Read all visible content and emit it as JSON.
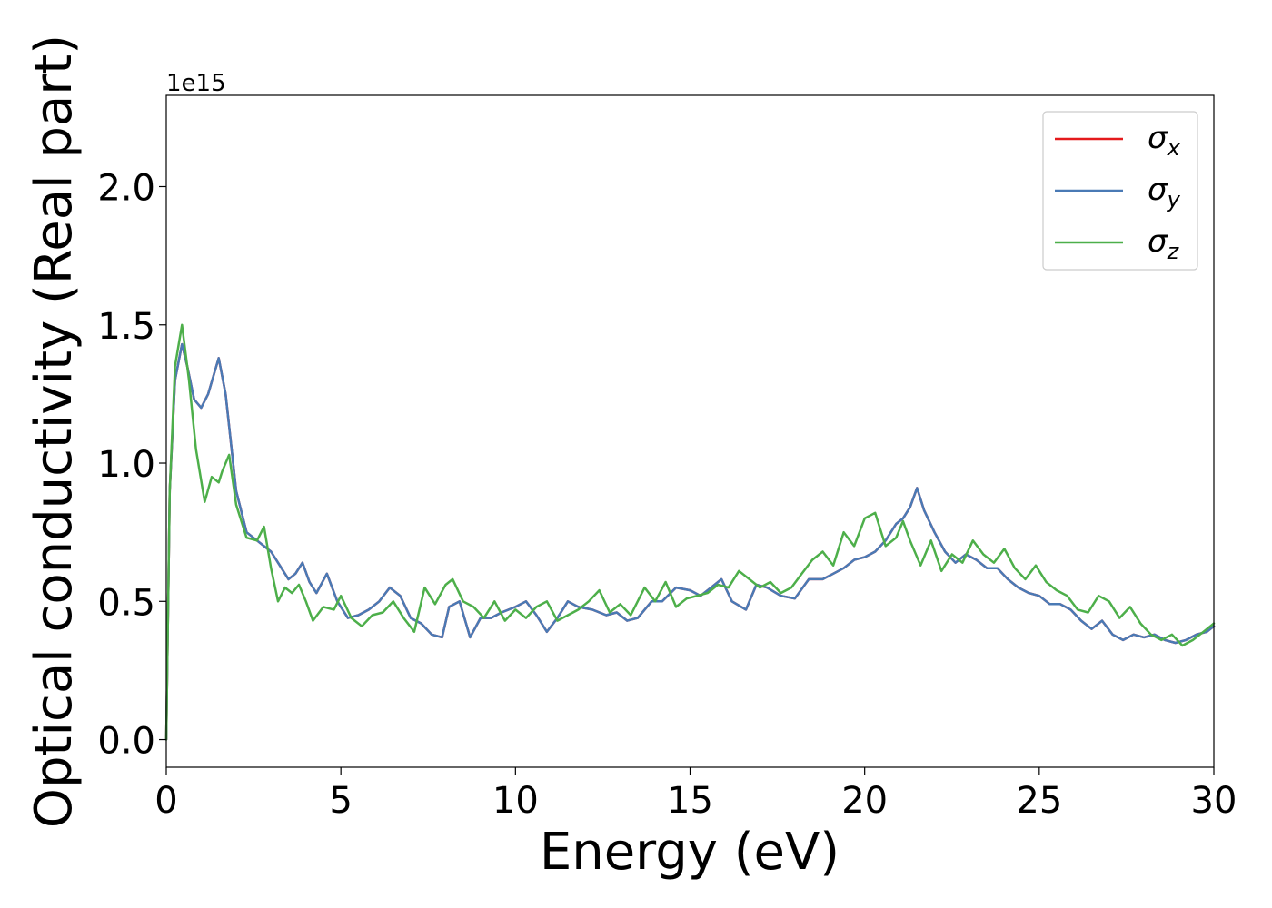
{
  "chart_data": {
    "type": "line",
    "xlabel": "Energy (eV)",
    "ylabel": "Optical conductivity (Real part)",
    "offset_label": "1e15",
    "scale": 1000000000000000.0,
    "xlim": [
      0,
      30
    ],
    "ylim": [
      -0.1,
      2.33
    ],
    "xticks": [
      0,
      5,
      10,
      15,
      20,
      25,
      30
    ],
    "xtick_labels": [
      "0",
      "5",
      "10",
      "15",
      "20",
      "25",
      "30"
    ],
    "yticks": [
      0.0,
      0.5,
      1.0,
      1.5,
      2.0
    ],
    "ytick_labels": [
      "0.0",
      "0.5",
      "1.0",
      "1.5",
      "2.0"
    ],
    "grid": false,
    "legend_position": "top-right",
    "series": [
      {
        "name": "σx",
        "symbol": "σ",
        "subscript": "x",
        "color": "#e41a1c",
        "x": [
          0,
          0.1,
          0.25,
          0.45,
          0.6,
          0.8,
          1.0,
          1.2,
          1.5,
          1.7,
          2.0,
          2.3,
          2.6,
          3.0,
          3.3,
          3.5,
          3.7,
          3.9,
          4.1,
          4.3,
          4.6,
          4.9,
          5.2,
          5.5,
          5.8,
          6.1,
          6.4,
          6.7,
          7.0,
          7.3,
          7.6,
          7.9,
          8.1,
          8.4,
          8.7,
          9.0,
          9.3,
          9.6,
          10.0,
          10.3,
          10.6,
          10.9,
          11.2,
          11.5,
          11.8,
          12.2,
          12.6,
          12.9,
          13.2,
          13.5,
          13.9,
          14.2,
          14.6,
          15.0,
          15.3,
          15.6,
          15.9,
          16.2,
          16.6,
          16.9,
          17.2,
          17.6,
          18.0,
          18.4,
          18.8,
          19.1,
          19.4,
          19.7,
          20.0,
          20.3,
          20.6,
          20.9,
          21.1,
          21.3,
          21.5,
          21.7,
          22.0,
          22.3,
          22.6,
          22.9,
          23.2,
          23.5,
          23.8,
          24.1,
          24.4,
          24.7,
          25.0,
          25.3,
          25.6,
          25.9,
          26.2,
          26.5,
          26.8,
          27.1,
          27.4,
          27.7,
          28.0,
          28.3,
          28.6,
          28.9,
          29.2,
          29.5,
          29.8,
          30.0
        ],
        "values": [
          0.0,
          0.9,
          1.3,
          1.43,
          1.35,
          1.23,
          1.2,
          1.25,
          1.38,
          1.25,
          0.9,
          0.75,
          0.72,
          0.68,
          0.62,
          0.58,
          0.6,
          0.64,
          0.57,
          0.53,
          0.6,
          0.5,
          0.44,
          0.45,
          0.47,
          0.5,
          0.55,
          0.52,
          0.44,
          0.42,
          0.38,
          0.37,
          0.48,
          0.5,
          0.37,
          0.44,
          0.44,
          0.46,
          0.48,
          0.5,
          0.45,
          0.39,
          0.44,
          0.5,
          0.48,
          0.47,
          0.45,
          0.46,
          0.43,
          0.44,
          0.5,
          0.5,
          0.55,
          0.54,
          0.52,
          0.55,
          0.58,
          0.5,
          0.47,
          0.56,
          0.55,
          0.52,
          0.51,
          0.58,
          0.58,
          0.6,
          0.62,
          0.65,
          0.66,
          0.68,
          0.72,
          0.78,
          0.8,
          0.84,
          0.91,
          0.83,
          0.75,
          0.68,
          0.64,
          0.67,
          0.65,
          0.62,
          0.62,
          0.58,
          0.55,
          0.53,
          0.52,
          0.49,
          0.49,
          0.47,
          0.43,
          0.4,
          0.43,
          0.38,
          0.36,
          0.38,
          0.37,
          0.38,
          0.36,
          0.35,
          0.36,
          0.38,
          0.39,
          0.41
        ]
      },
      {
        "name": "σy",
        "symbol": "σ",
        "subscript": "y",
        "color": "#4a7ab5",
        "x": [
          0,
          0.1,
          0.25,
          0.45,
          0.6,
          0.8,
          1.0,
          1.2,
          1.5,
          1.7,
          2.0,
          2.3,
          2.6,
          3.0,
          3.3,
          3.5,
          3.7,
          3.9,
          4.1,
          4.3,
          4.6,
          4.9,
          5.2,
          5.5,
          5.8,
          6.1,
          6.4,
          6.7,
          7.0,
          7.3,
          7.6,
          7.9,
          8.1,
          8.4,
          8.7,
          9.0,
          9.3,
          9.6,
          10.0,
          10.3,
          10.6,
          10.9,
          11.2,
          11.5,
          11.8,
          12.2,
          12.6,
          12.9,
          13.2,
          13.5,
          13.9,
          14.2,
          14.6,
          15.0,
          15.3,
          15.6,
          15.9,
          16.2,
          16.6,
          16.9,
          17.2,
          17.6,
          18.0,
          18.4,
          18.8,
          19.1,
          19.4,
          19.7,
          20.0,
          20.3,
          20.6,
          20.9,
          21.1,
          21.3,
          21.5,
          21.7,
          22.0,
          22.3,
          22.6,
          22.9,
          23.2,
          23.5,
          23.8,
          24.1,
          24.4,
          24.7,
          25.0,
          25.3,
          25.6,
          25.9,
          26.2,
          26.5,
          26.8,
          27.1,
          27.4,
          27.7,
          28.0,
          28.3,
          28.6,
          28.9,
          29.2,
          29.5,
          29.8,
          30.0
        ],
        "values": [
          0.0,
          0.9,
          1.3,
          1.43,
          1.35,
          1.23,
          1.2,
          1.25,
          1.38,
          1.25,
          0.9,
          0.75,
          0.72,
          0.68,
          0.62,
          0.58,
          0.6,
          0.64,
          0.57,
          0.53,
          0.6,
          0.5,
          0.44,
          0.45,
          0.47,
          0.5,
          0.55,
          0.52,
          0.44,
          0.42,
          0.38,
          0.37,
          0.48,
          0.5,
          0.37,
          0.44,
          0.44,
          0.46,
          0.48,
          0.5,
          0.45,
          0.39,
          0.44,
          0.5,
          0.48,
          0.47,
          0.45,
          0.46,
          0.43,
          0.44,
          0.5,
          0.5,
          0.55,
          0.54,
          0.52,
          0.55,
          0.58,
          0.5,
          0.47,
          0.56,
          0.55,
          0.52,
          0.51,
          0.58,
          0.58,
          0.6,
          0.62,
          0.65,
          0.66,
          0.68,
          0.72,
          0.78,
          0.8,
          0.84,
          0.91,
          0.83,
          0.75,
          0.68,
          0.64,
          0.67,
          0.65,
          0.62,
          0.62,
          0.58,
          0.55,
          0.53,
          0.52,
          0.49,
          0.49,
          0.47,
          0.43,
          0.4,
          0.43,
          0.38,
          0.36,
          0.38,
          0.37,
          0.38,
          0.36,
          0.35,
          0.36,
          0.38,
          0.39,
          0.41
        ]
      },
      {
        "name": "σz",
        "symbol": "σ",
        "subscript": "z",
        "color": "#4daf4a",
        "x": [
          0,
          0.1,
          0.25,
          0.45,
          0.65,
          0.85,
          1.1,
          1.3,
          1.5,
          1.6,
          1.8,
          2.0,
          2.3,
          2.6,
          2.8,
          3.0,
          3.2,
          3.4,
          3.6,
          3.8,
          4.0,
          4.2,
          4.5,
          4.8,
          5.0,
          5.3,
          5.6,
          5.9,
          6.2,
          6.5,
          6.8,
          7.1,
          7.4,
          7.7,
          8.0,
          8.2,
          8.5,
          8.8,
          9.1,
          9.4,
          9.7,
          10.0,
          10.3,
          10.6,
          10.9,
          11.2,
          11.5,
          11.8,
          12.1,
          12.4,
          12.7,
          13.0,
          13.3,
          13.7,
          14.0,
          14.3,
          14.6,
          14.9,
          15.2,
          15.5,
          15.8,
          16.1,
          16.4,
          16.7,
          17.0,
          17.3,
          17.6,
          17.9,
          18.2,
          18.5,
          18.8,
          19.1,
          19.4,
          19.7,
          20.0,
          20.3,
          20.6,
          20.9,
          21.1,
          21.3,
          21.6,
          21.9,
          22.2,
          22.5,
          22.8,
          23.1,
          23.4,
          23.7,
          24.0,
          24.3,
          24.6,
          24.9,
          25.2,
          25.5,
          25.8,
          26.1,
          26.4,
          26.7,
          27.0,
          27.3,
          27.6,
          27.9,
          28.2,
          28.5,
          28.8,
          29.1,
          29.4,
          29.7,
          30.0
        ],
        "values": [
          0.0,
          0.9,
          1.35,
          1.5,
          1.3,
          1.05,
          0.86,
          0.95,
          0.93,
          0.97,
          1.03,
          0.85,
          0.73,
          0.72,
          0.77,
          0.62,
          0.5,
          0.55,
          0.53,
          0.56,
          0.5,
          0.43,
          0.48,
          0.47,
          0.52,
          0.44,
          0.41,
          0.45,
          0.46,
          0.5,
          0.44,
          0.39,
          0.55,
          0.49,
          0.56,
          0.58,
          0.5,
          0.48,
          0.44,
          0.5,
          0.43,
          0.47,
          0.44,
          0.48,
          0.5,
          0.43,
          0.45,
          0.47,
          0.5,
          0.54,
          0.46,
          0.49,
          0.45,
          0.55,
          0.5,
          0.57,
          0.48,
          0.51,
          0.52,
          0.53,
          0.56,
          0.55,
          0.61,
          0.58,
          0.55,
          0.57,
          0.53,
          0.55,
          0.6,
          0.65,
          0.68,
          0.63,
          0.75,
          0.7,
          0.8,
          0.82,
          0.7,
          0.73,
          0.79,
          0.72,
          0.63,
          0.72,
          0.61,
          0.67,
          0.64,
          0.72,
          0.67,
          0.64,
          0.69,
          0.62,
          0.58,
          0.63,
          0.57,
          0.54,
          0.52,
          0.47,
          0.46,
          0.52,
          0.5,
          0.44,
          0.48,
          0.42,
          0.38,
          0.36,
          0.38,
          0.34,
          0.36,
          0.39,
          0.42
        ]
      }
    ]
  }
}
